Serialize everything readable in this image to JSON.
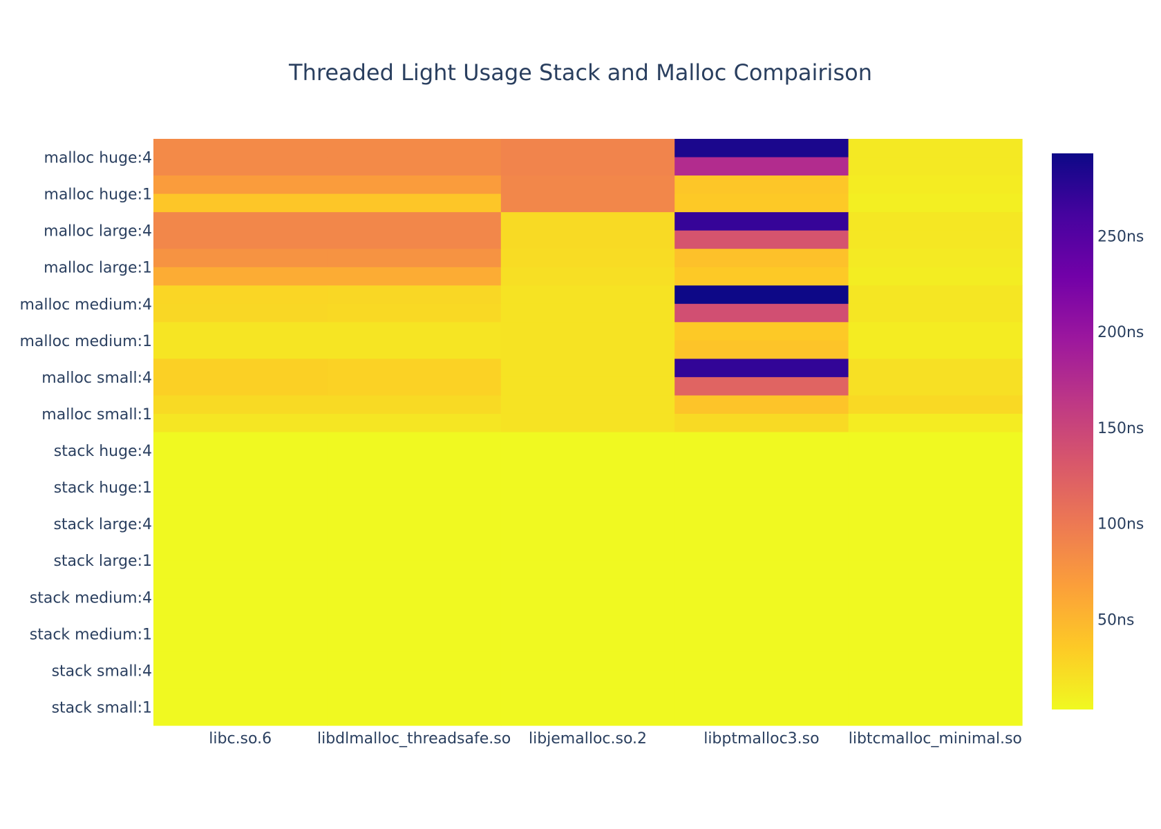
{
  "chart_data": {
    "type": "heatmap",
    "title": "Threaded Light Usage Stack and Malloc Compairison",
    "xlabel": "",
    "ylabel": "",
    "x_categories": [
      "libc.so.6",
      "libdlmalloc_threadsafe.so",
      "libjemalloc.so.2",
      "libptmalloc3.so",
      "libtcmalloc_minimal.so"
    ],
    "y_labels_shown": [
      "malloc huge:4",
      "malloc huge:1",
      "malloc large:4",
      "malloc large:1",
      "malloc medium:4",
      "malloc medium:1",
      "malloc small:4",
      "malloc small:1",
      "stack huge:4",
      "stack huge:1",
      "stack large:4",
      "stack large:1",
      "stack medium:4",
      "stack medium:1",
      "stack small:4",
      "stack small:1"
    ],
    "rows_top_to_bottom": 32,
    "z_ns_rows": [
      [
        85,
        85,
        90,
        285,
        14
      ],
      [
        85,
        85,
        90,
        175,
        14
      ],
      [
        70,
        70,
        88,
        38,
        12
      ],
      [
        38,
        38,
        88,
        36,
        10
      ],
      [
        88,
        88,
        24,
        270,
        15
      ],
      [
        88,
        88,
        24,
        135,
        15
      ],
      [
        78,
        78,
        23,
        42,
        13
      ],
      [
        58,
        58,
        21,
        36,
        11
      ],
      [
        27,
        26,
        18,
        293,
        16
      ],
      [
        26,
        25,
        18,
        140,
        16
      ],
      [
        17,
        17,
        18,
        36,
        12
      ],
      [
        17,
        17,
        18,
        40,
        12
      ],
      [
        31,
        30,
        18,
        272,
        20
      ],
      [
        31,
        30,
        18,
        120,
        20
      ],
      [
        24,
        24,
        18,
        40,
        25
      ],
      [
        16,
        16,
        18,
        24,
        12
      ],
      [
        3,
        3,
        3,
        3,
        3
      ],
      [
        3,
        3,
        3,
        3,
        3
      ],
      [
        3,
        3,
        3,
        3,
        3
      ],
      [
        3,
        3,
        3,
        3,
        3
      ],
      [
        3,
        3,
        3,
        3,
        3
      ],
      [
        3,
        3,
        3,
        3,
        3
      ],
      [
        3,
        3,
        3,
        3,
        3
      ],
      [
        3,
        3,
        3,
        3,
        3
      ],
      [
        3,
        3,
        3,
        3,
        3
      ],
      [
        3,
        3,
        3,
        3,
        3
      ],
      [
        3,
        3,
        3,
        3,
        3
      ],
      [
        3,
        3,
        3,
        3,
        3
      ],
      [
        3,
        3,
        3,
        3,
        3
      ],
      [
        3,
        3,
        3,
        3,
        3
      ],
      [
        3,
        3,
        3,
        3,
        3
      ],
      [
        3,
        3,
        3,
        3,
        3
      ]
    ],
    "colorbar": {
      "zmin": 3,
      "zmax": 293,
      "ticks": [
        50,
        100,
        150,
        200,
        250
      ],
      "tick_labels": [
        "50ns",
        "100ns",
        "150ns",
        "200ns",
        "250ns"
      ],
      "colorscale": [
        "#f0f921",
        "#fdca26",
        "#fb9f3a",
        "#ed7953",
        "#d8576b",
        "#bd3786",
        "#9c179e",
        "#7201a8",
        "#46039f",
        "#0d0887"
      ]
    },
    "grid": false,
    "legend": "colorbar-right"
  }
}
